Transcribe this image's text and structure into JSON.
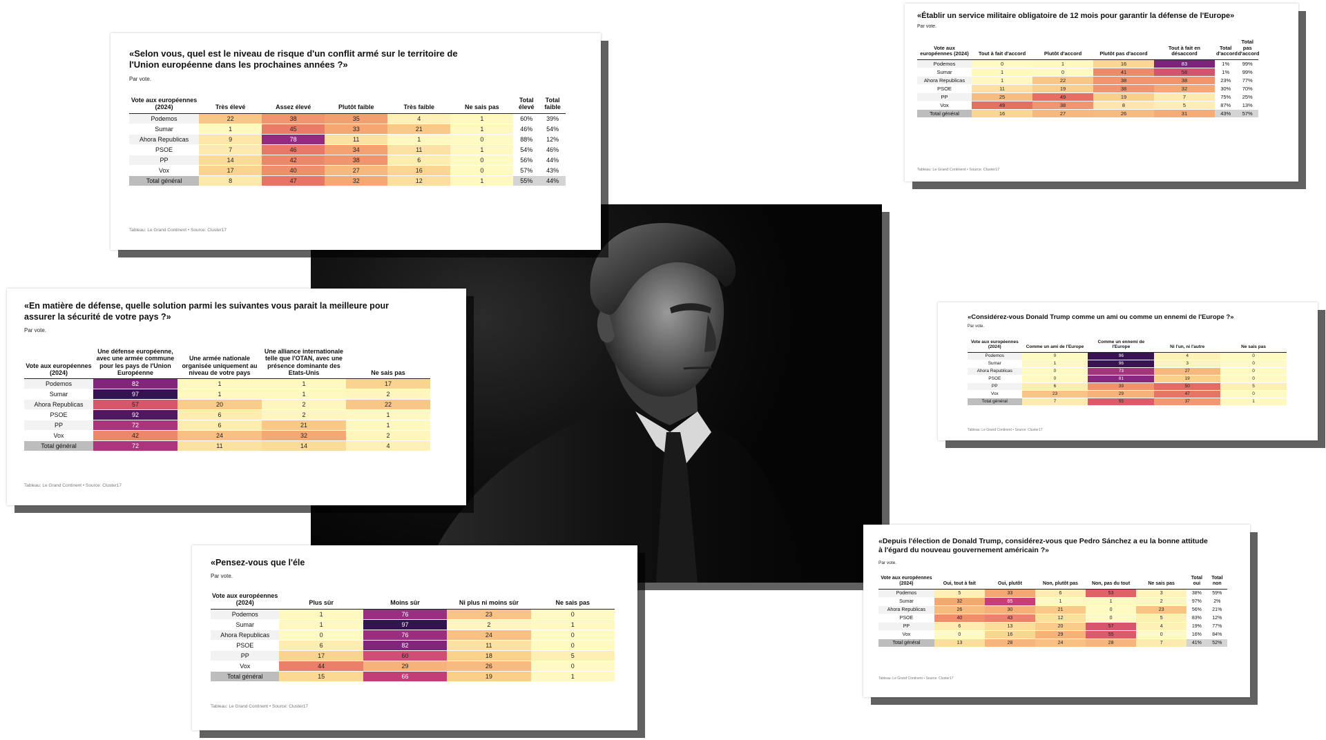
{
  "photo": {
    "alt": "Pedro Sánchez"
  },
  "chart_data": [
    {
      "id": "c1",
      "type": "table",
      "title": "«Selon vous, quel est le niveau de risque d'un conflit armé sur le territoire de l'Union européenne dans les prochaines années ?»",
      "subtitle": "Par vote.",
      "row_header": "Vote aux européennes (2024)",
      "columns": [
        "Très élevé",
        "Assez élevé",
        "Plutôt faible",
        "Très faible",
        "Ne sais pas"
      ],
      "total_columns": [
        "Total élevé",
        "Total faible"
      ],
      "rows": [
        {
          "label": "Podemos",
          "values": [
            22,
            38,
            35,
            4,
            1
          ],
          "totals": [
            "60%",
            "39%"
          ]
        },
        {
          "label": "Sumar",
          "values": [
            1,
            45,
            33,
            21,
            1
          ],
          "totals": [
            "46%",
            "54%"
          ]
        },
        {
          "label": "Ahora Republicas",
          "values": [
            9,
            78,
            11,
            1,
            0
          ],
          "totals": [
            "88%",
            "12%"
          ]
        },
        {
          "label": "PSOE",
          "values": [
            7,
            46,
            34,
            11,
            1
          ],
          "totals": [
            "54%",
            "46%"
          ]
        },
        {
          "label": "PP",
          "values": [
            14,
            42,
            38,
            6,
            0
          ],
          "totals": [
            "56%",
            "44%"
          ]
        },
        {
          "label": "Vox",
          "values": [
            17,
            40,
            27,
            16,
            0
          ],
          "totals": [
            "57%",
            "43%"
          ]
        },
        {
          "label": "Total général",
          "values": [
            8,
            47,
            32,
            12,
            1
          ],
          "totals": [
            "55%",
            "44%"
          ]
        }
      ],
      "source": "Tableau: Le Grand Continent • Source: Cluster17"
    },
    {
      "id": "c2",
      "type": "table",
      "title": "«Établir un service militaire obligatoire de 12 mois pour garantir la défense de l'Europe»",
      "subtitle": "Par vote.",
      "row_header": "Vote aux européennes (2024)",
      "columns": [
        "Tout à fait d'accord",
        "Plutôt d'accord",
        "Plutôt pas d'accord",
        "Tout à fait en désaccord"
      ],
      "total_columns": [
        "Total d'accord",
        "Total pas d'accord"
      ],
      "rows": [
        {
          "label": "Podemos",
          "values": [
            0,
            1,
            16,
            83
          ],
          "totals": [
            "1%",
            "99%"
          ]
        },
        {
          "label": "Sumar",
          "values": [
            1,
            0,
            41,
            58
          ],
          "totals": [
            "1%",
            "99%"
          ]
        },
        {
          "label": "Ahora Republicas",
          "values": [
            1,
            22,
            38,
            38
          ],
          "totals": [
            "23%",
            "77%"
          ]
        },
        {
          "label": "PSOE",
          "values": [
            11,
            19,
            38,
            32
          ],
          "totals": [
            "30%",
            "70%"
          ]
        },
        {
          "label": "PP",
          "values": [
            25,
            49,
            19,
            7
          ],
          "totals": [
            "75%",
            "25%"
          ]
        },
        {
          "label": "Vox",
          "values": [
            49,
            38,
            8,
            5
          ],
          "totals": [
            "87%",
            "13%"
          ]
        },
        {
          "label": "Total général",
          "values": [
            16,
            27,
            26,
            31
          ],
          "totals": [
            "43%",
            "57%"
          ]
        }
      ],
      "source": "Tableau: Le Grand Continent • Source: Cluster17"
    },
    {
      "id": "c3",
      "type": "table",
      "title": "«En matière de défense, quelle solution parmi les suivantes vous parait la meilleure pour assurer la sécurité de votre pays ?»",
      "subtitle": "Par vote.",
      "row_header": "Vote aux européennes (2024)",
      "columns": [
        "Une défense européenne, avec une armée commune pour les pays de l'Union Européenne",
        "Une armée nationale organisée uniquement au niveau de votre pays",
        "Une alliance internationale telle que l'OTAN, avec une présence dominante des Etats-Unis",
        "Ne sais pas"
      ],
      "total_columns": [],
      "rows": [
        {
          "label": "Podemos",
          "values": [
            82,
            1,
            1,
            17
          ],
          "totals": []
        },
        {
          "label": "Sumar",
          "values": [
            97,
            1,
            1,
            2
          ],
          "totals": []
        },
        {
          "label": "Ahora Republicas",
          "values": [
            57,
            20,
            2,
            22
          ],
          "totals": []
        },
        {
          "label": "PSOE",
          "values": [
            92,
            6,
            2,
            1
          ],
          "totals": []
        },
        {
          "label": "PP",
          "values": [
            72,
            6,
            21,
            1
          ],
          "totals": []
        },
        {
          "label": "Vox",
          "values": [
            42,
            24,
            32,
            2
          ],
          "totals": []
        },
        {
          "label": "Total général",
          "values": [
            72,
            11,
            14,
            4
          ],
          "totals": []
        }
      ],
      "source": "Tableau: Le Grand Continent • Source: Cluster17"
    },
    {
      "id": "c4",
      "type": "table",
      "title": "«Considérez-vous Donald Trump comme un ami ou comme un ennemi de l'Europe ?»",
      "subtitle": "Par vote.",
      "row_header": "Vote aux européennes (2024)",
      "columns": [
        "Comme un ami de l'Europe",
        "Comme un ennemi de l'Europe",
        "Ni l'un, ni l'autre",
        "Ne sais pas"
      ],
      "total_columns": [],
      "rows": [
        {
          "label": "Podemos",
          "values": [
            0,
            96,
            4,
            0
          ],
          "totals": []
        },
        {
          "label": "Sumar",
          "values": [
            1,
            96,
            3,
            0
          ],
          "totals": []
        },
        {
          "label": "Ahora Republicas",
          "values": [
            0,
            73,
            27,
            0
          ],
          "totals": []
        },
        {
          "label": "PSOE",
          "values": [
            0,
            81,
            19,
            0
          ],
          "totals": []
        },
        {
          "label": "PP",
          "values": [
            6,
            39,
            50,
            5
          ],
          "totals": []
        },
        {
          "label": "Vox",
          "values": [
            23,
            29,
            47,
            0
          ],
          "totals": []
        },
        {
          "label": "Total général",
          "values": [
            7,
            55,
            37,
            1
          ],
          "totals": []
        }
      ],
      "source": "Tableau: Le Grand Continent • Source: Cluster17"
    },
    {
      "id": "c5",
      "type": "table",
      "title": "«Pensez-vous que l'éle",
      "subtitle": "Par vote.",
      "row_header": "Vote aux européennes (2024)",
      "columns": [
        "Plus sûr",
        "Moins sûr",
        "Ni plus ni moins sûr",
        "Ne sais pas"
      ],
      "total_columns": [],
      "rows": [
        {
          "label": "Podemos",
          "values": [
            1,
            76,
            23,
            0
          ],
          "totals": []
        },
        {
          "label": "Sumar",
          "values": [
            1,
            97,
            2,
            1
          ],
          "totals": []
        },
        {
          "label": "Ahora Republicas",
          "values": [
            0,
            76,
            24,
            0
          ],
          "totals": []
        },
        {
          "label": "PSOE",
          "values": [
            6,
            82,
            11,
            0
          ],
          "totals": []
        },
        {
          "label": "PP",
          "values": [
            17,
            60,
            18,
            5
          ],
          "totals": []
        },
        {
          "label": "Vox",
          "values": [
            44,
            29,
            26,
            0
          ],
          "totals": []
        },
        {
          "label": "Total général",
          "values": [
            15,
            66,
            19,
            1
          ],
          "totals": []
        }
      ],
      "source": "Tableau: Le Grand Continent • Source: Cluster17"
    },
    {
      "id": "c6",
      "type": "table",
      "title": "«Depuis l'élection de Donald Trump, considérez-vous que Pedro Sánchez a eu la bonne attitude à l'égard du nouveau gouvernement américain ?»",
      "subtitle": "Par vote.",
      "row_header": "Vote aux européennes (2024)",
      "columns": [
        "Oui, tout à fait",
        "Oui, plutôt",
        "Non, plutôt pas",
        "Non, pas du tout",
        "Ne sais pas"
      ],
      "total_columns": [
        "Total oui",
        "Total non"
      ],
      "rows": [
        {
          "label": "Podemos",
          "values": [
            5,
            33,
            6,
            53,
            3
          ],
          "totals": [
            "38%",
            "59%"
          ]
        },
        {
          "label": "Sumar",
          "values": [
            32,
            65,
            1,
            1,
            2
          ],
          "totals": [
            "97%",
            "2%"
          ]
        },
        {
          "label": "Ahora Republicas",
          "values": [
            26,
            30,
            21,
            0,
            23
          ],
          "totals": [
            "56%",
            "21%"
          ]
        },
        {
          "label": "PSOE",
          "values": [
            40,
            43,
            12,
            0,
            5
          ],
          "totals": [
            "83%",
            "12%"
          ]
        },
        {
          "label": "PP",
          "values": [
            6,
            13,
            20,
            57,
            4
          ],
          "totals": [
            "19%",
            "77%"
          ]
        },
        {
          "label": "Vox",
          "values": [
            0,
            16,
            29,
            55,
            0
          ],
          "totals": [
            "16%",
            "84%"
          ]
        },
        {
          "label": "Total général",
          "values": [
            13,
            28,
            24,
            28,
            7
          ],
          "totals": [
            "41%",
            "52%"
          ]
        }
      ],
      "source": "Tableau: Le Grand Continent • Source: Cluster17"
    }
  ]
}
